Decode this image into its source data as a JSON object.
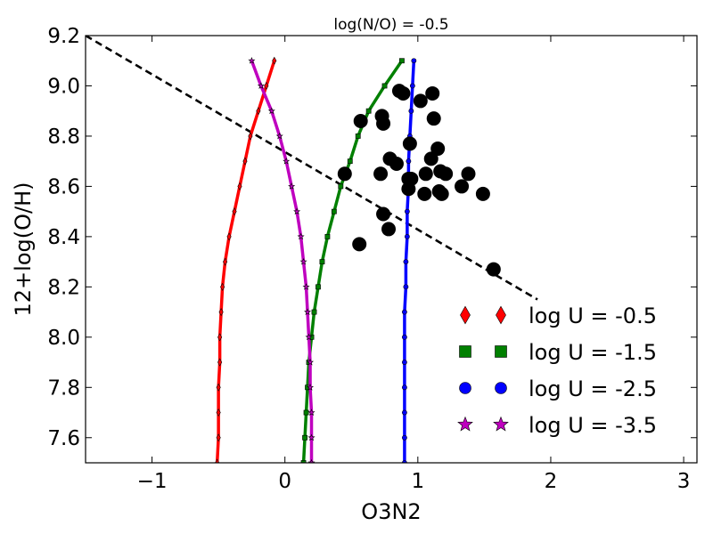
{
  "chart_data": {
    "type": "line",
    "title": "log(N/O) = -0.5",
    "xlabel": "O3N2",
    "ylabel": "12+log(O/H)",
    "xlim": [
      -1.5,
      3.1
    ],
    "ylim": [
      7.5,
      9.2
    ],
    "xticks": [
      -1,
      0,
      1,
      2,
      3
    ],
    "xtick_labels": [
      "−1",
      "0",
      "1",
      "2",
      "3"
    ],
    "yticks": [
      7.6,
      7.8,
      8.0,
      8.2,
      8.4,
      8.6,
      8.8,
      9.0,
      9.2
    ],
    "ytick_labels": [
      "7.6",
      "7.8",
      "8.0",
      "8.2",
      "8.4",
      "8.6",
      "8.8",
      "9.0",
      "9.2"
    ],
    "grid": false,
    "legend_position": "lower-right",
    "series": [
      {
        "name": "log U = -0.5",
        "color": "#ff0000",
        "marker": "diamond",
        "points": [
          [
            -0.08,
            9.1
          ],
          [
            -0.14,
            9.0
          ],
          [
            -0.2,
            8.9
          ],
          [
            -0.26,
            8.8
          ],
          [
            -0.3,
            8.7
          ],
          [
            -0.34,
            8.6
          ],
          [
            -0.38,
            8.5
          ],
          [
            -0.42,
            8.4
          ],
          [
            -0.45,
            8.3
          ],
          [
            -0.47,
            8.2
          ],
          [
            -0.48,
            8.1
          ],
          [
            -0.49,
            8.0
          ],
          [
            -0.49,
            7.9
          ],
          [
            -0.5,
            7.8
          ],
          [
            -0.5,
            7.7
          ],
          [
            -0.5,
            7.6
          ],
          [
            -0.51,
            7.5
          ]
        ]
      },
      {
        "name": "log U = -1.5",
        "color": "#008000",
        "marker": "square",
        "points": [
          [
            0.88,
            9.1
          ],
          [
            0.75,
            9.0
          ],
          [
            0.63,
            8.9
          ],
          [
            0.55,
            8.8
          ],
          [
            0.49,
            8.7
          ],
          [
            0.42,
            8.6
          ],
          [
            0.37,
            8.5
          ],
          [
            0.32,
            8.4
          ],
          [
            0.28,
            8.3
          ],
          [
            0.25,
            8.2
          ],
          [
            0.22,
            8.1
          ],
          [
            0.2,
            8.0
          ],
          [
            0.18,
            7.9
          ],
          [
            0.17,
            7.8
          ],
          [
            0.16,
            7.7
          ],
          [
            0.15,
            7.6
          ],
          [
            0.14,
            7.5
          ]
        ]
      },
      {
        "name": "log U = -2.5",
        "color": "#0000ff",
        "marker": "circle",
        "points": [
          [
            0.97,
            9.1
          ],
          [
            0.96,
            9.0
          ],
          [
            0.95,
            8.9
          ],
          [
            0.94,
            8.8
          ],
          [
            0.93,
            8.7
          ],
          [
            0.93,
            8.6
          ],
          [
            0.92,
            8.5
          ],
          [
            0.92,
            8.4
          ],
          [
            0.91,
            8.3
          ],
          [
            0.91,
            8.2
          ],
          [
            0.9,
            8.1
          ],
          [
            0.9,
            8.0
          ],
          [
            0.9,
            7.9
          ],
          [
            0.9,
            7.8
          ],
          [
            0.9,
            7.7
          ],
          [
            0.9,
            7.6
          ],
          [
            0.9,
            7.5
          ]
        ]
      },
      {
        "name": "log U = -3.5",
        "color": "#bf00bf",
        "marker": "star",
        "points": [
          [
            -0.25,
            9.1
          ],
          [
            -0.18,
            9.0
          ],
          [
            -0.1,
            8.9
          ],
          [
            -0.04,
            8.8
          ],
          [
            0.01,
            8.7
          ],
          [
            0.05,
            8.6
          ],
          [
            0.09,
            8.5
          ],
          [
            0.12,
            8.4
          ],
          [
            0.14,
            8.3
          ],
          [
            0.16,
            8.2
          ],
          [
            0.17,
            8.1
          ],
          [
            0.18,
            8.0
          ],
          [
            0.19,
            7.9
          ],
          [
            0.19,
            7.8
          ],
          [
            0.2,
            7.7
          ],
          [
            0.2,
            7.6
          ],
          [
            0.2,
            7.5
          ]
        ]
      }
    ],
    "observations": {
      "color": "#000000",
      "points": [
        [
          0.57,
          8.86
        ],
        [
          0.73,
          8.88
        ],
        [
          0.74,
          8.85
        ],
        [
          0.86,
          8.98
        ],
        [
          0.89,
          8.97
        ],
        [
          1.02,
          8.94
        ],
        [
          1.11,
          8.97
        ],
        [
          1.12,
          8.87
        ],
        [
          0.94,
          8.77
        ],
        [
          1.15,
          8.75
        ],
        [
          0.79,
          8.71
        ],
        [
          0.84,
          8.69
        ],
        [
          1.1,
          8.71
        ],
        [
          0.45,
          8.65
        ],
        [
          0.72,
          8.65
        ],
        [
          0.93,
          8.63
        ],
        [
          0.95,
          8.63
        ],
        [
          1.06,
          8.65
        ],
        [
          1.17,
          8.66
        ],
        [
          1.21,
          8.65
        ],
        [
          1.38,
          8.65
        ],
        [
          0.93,
          8.59
        ],
        [
          1.05,
          8.57
        ],
        [
          1.16,
          8.58
        ],
        [
          1.18,
          8.57
        ],
        [
          1.33,
          8.6
        ],
        [
          1.49,
          8.57
        ],
        [
          0.74,
          8.49
        ],
        [
          0.78,
          8.43
        ],
        [
          0.56,
          8.37
        ],
        [
          1.57,
          8.27
        ]
      ]
    },
    "reference_line": {
      "style": "dashed",
      "color": "#000000",
      "points": [
        [
          -1.5,
          9.2
        ],
        [
          1.9,
          8.15
        ]
      ]
    }
  }
}
